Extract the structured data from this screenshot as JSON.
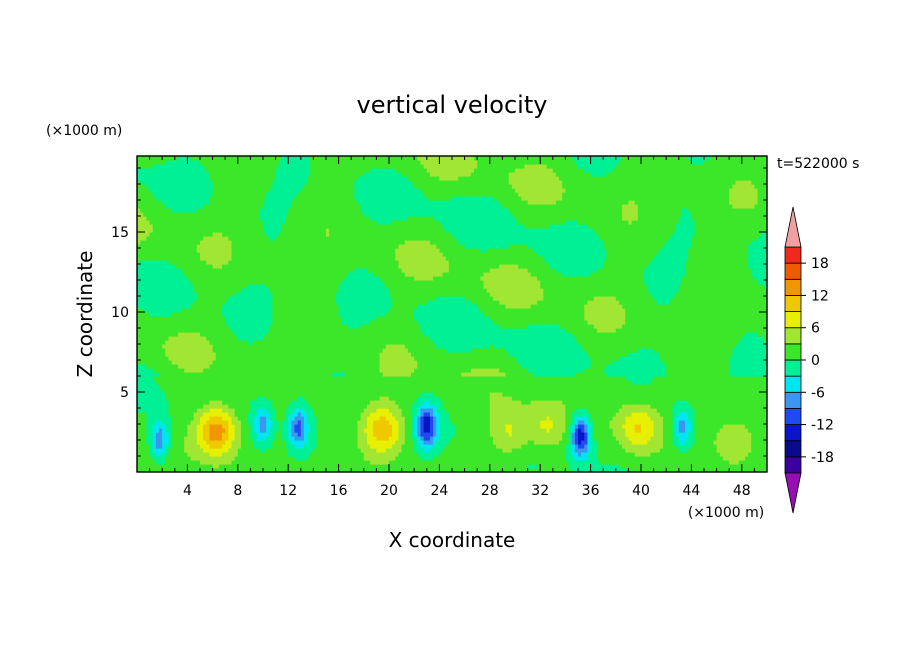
{
  "chart_data": {
    "type": "heatmap",
    "title": "vertical velocity",
    "xlabel": "X coordinate",
    "ylabel": "Z coordinate",
    "x_unit": "(×1000 m)",
    "y_unit": "(×1000 m)",
    "time_label": "t=522000 s",
    "xlim": [
      0,
      50
    ],
    "ylim": [
      0,
      19.75
    ],
    "x_ticks": [
      4,
      8,
      12,
      16,
      20,
      24,
      28,
      32,
      36,
      40,
      44,
      48
    ],
    "y_ticks": [
      5,
      10,
      15
    ],
    "colorbar": {
      "levels": [
        -21,
        -18,
        -15,
        -12,
        -9,
        -6,
        -3,
        0,
        3,
        6,
        9,
        12,
        15,
        18,
        21
      ],
      "tick_labels": [
        "18",
        "12",
        "6",
        "0",
        "-6",
        "-12",
        "-18"
      ],
      "tick_values": [
        18,
        12,
        6,
        0,
        -6,
        -12,
        -18
      ],
      "colors": [
        "#3c00a0",
        "#0a0a8c",
        "#0a14c8",
        "#1e4bf0",
        "#3c96f0",
        "#00e6f0",
        "#00f096",
        "#3ce628",
        "#a0e632",
        "#e6f000",
        "#f0c800",
        "#f09600",
        "#f05a00",
        "#f0281e"
      ],
      "under_color": "#960fb4",
      "over_color": "#f0a0a0"
    },
    "features": [
      {
        "x": 6.3,
        "z": 2.6,
        "w": 14,
        "kind": "updraft"
      },
      {
        "x": 19.5,
        "z": 2.7,
        "w": 10,
        "kind": "updraft"
      },
      {
        "x": 29.5,
        "z": 2.4,
        "w": 6,
        "kind": "updraft"
      },
      {
        "x": 32.5,
        "z": 2.8,
        "w": 5,
        "kind": "updraft"
      },
      {
        "x": 39.8,
        "z": 2.8,
        "w": 8,
        "kind": "updraft"
      },
      {
        "x": 47.3,
        "z": 1.8,
        "w": 5,
        "kind": "updraft"
      },
      {
        "x": 1.8,
        "z": 2.0,
        "w": -10,
        "kind": "downdraft"
      },
      {
        "x": 10.0,
        "z": 3.0,
        "w": -8,
        "kind": "downdraft"
      },
      {
        "x": 12.8,
        "z": 2.8,
        "w": -11,
        "kind": "downdraft"
      },
      {
        "x": 23.0,
        "z": 2.9,
        "w": -14,
        "kind": "downdraft"
      },
      {
        "x": 35.2,
        "z": 2.3,
        "w": -16,
        "kind": "downdraft"
      },
      {
        "x": 43.3,
        "z": 2.8,
        "w": -9,
        "kind": "downdraft"
      }
    ]
  }
}
